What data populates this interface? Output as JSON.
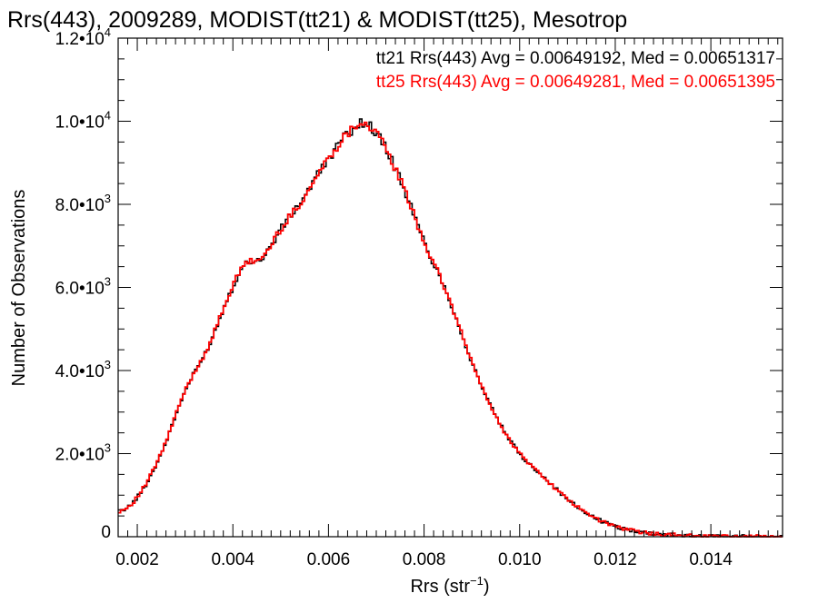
{
  "chart_data": {
    "type": "line",
    "style": "histogram-step",
    "title": "Rrs(443), 2009289, MODIST(tt21) & MODIST(tt25), Mesotrop",
    "xlabel": "Rrs (str",
    "xlabel_sup": "−1",
    "xlabel_close": ")",
    "ylabel": "Number of Observations",
    "xlim": [
      0.0016,
      0.0155
    ],
    "ylim": [
      0,
      12000
    ],
    "grid": false,
    "legend_position": "top-right",
    "x_ticks": [
      {
        "value": 0.002,
        "label": "0.002"
      },
      {
        "value": 0.004,
        "label": "0.004"
      },
      {
        "value": 0.006,
        "label": "0.006"
      },
      {
        "value": 0.008,
        "label": "0.008"
      },
      {
        "value": 0.01,
        "label": "0.010"
      },
      {
        "value": 0.012,
        "label": "0.012"
      },
      {
        "value": 0.014,
        "label": "0.014"
      }
    ],
    "y_ticks": [
      {
        "value": 0,
        "mantissa": "0",
        "exp": ""
      },
      {
        "value": 2000,
        "mantissa": "2.0•10",
        "exp": "3"
      },
      {
        "value": 4000,
        "mantissa": "4.0•10",
        "exp": "3"
      },
      {
        "value": 6000,
        "mantissa": "6.0•10",
        "exp": "3"
      },
      {
        "value": 8000,
        "mantissa": "8.0•10",
        "exp": "3"
      },
      {
        "value": 10000,
        "mantissa": "1.0•10",
        "exp": "4"
      },
      {
        "value": 12000,
        "mantissa": "1.2•10",
        "exp": "4"
      }
    ],
    "x": [
      0.0016,
      0.002,
      0.0025,
      0.003,
      0.0035,
      0.004,
      0.0043,
      0.0046,
      0.005,
      0.0055,
      0.006,
      0.0065,
      0.0067,
      0.007,
      0.0075,
      0.008,
      0.0085,
      0.009,
      0.0095,
      0.01,
      0.0105,
      0.011,
      0.0115,
      0.012,
      0.0125,
      0.013,
      0.0135,
      0.014,
      0.0145,
      0.015,
      0.0155
    ],
    "series": [
      {
        "name": "tt21",
        "color": "#000000",
        "values": [
          600,
          950,
          2000,
          3500,
          4600,
          6000,
          6600,
          6700,
          7400,
          8200,
          9100,
          9800,
          9950,
          9700,
          8600,
          7100,
          5800,
          4200,
          2900,
          2000,
          1450,
          900,
          500,
          250,
          120,
          60,
          30,
          15,
          8,
          5,
          3
        ]
      },
      {
        "name": "tt25",
        "color": "#ff0000",
        "values": [
          600,
          960,
          2010,
          3510,
          4610,
          6010,
          6590,
          6710,
          7410,
          8190,
          9110,
          9810,
          9960,
          9690,
          8590,
          7110,
          5790,
          4210,
          2890,
          2010,
          1440,
          900,
          500,
          250,
          120,
          60,
          30,
          15,
          8,
          5,
          3
        ]
      }
    ],
    "legend": [
      {
        "text": "tt21 Rrs(443) Avg = 0.00649192, Med = 0.00651317",
        "color": "#000000"
      },
      {
        "text": "tt25 Rrs(443) Avg = 0.00649281, Med = 0.00651395",
        "color": "#ff0000"
      }
    ]
  }
}
